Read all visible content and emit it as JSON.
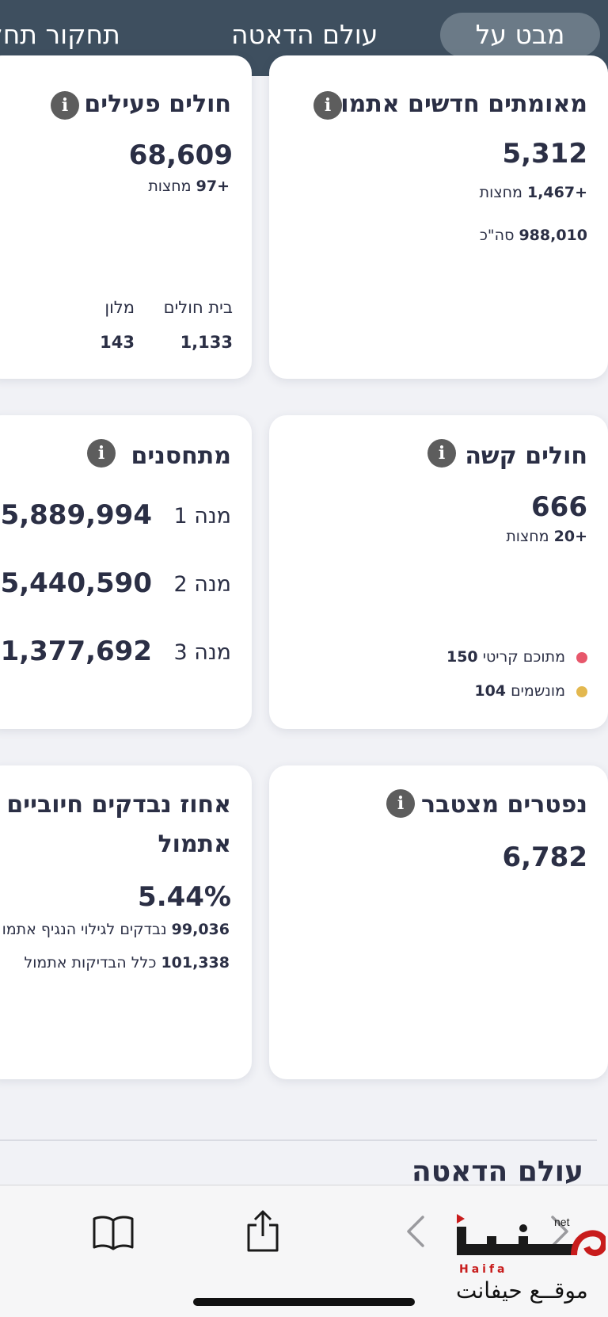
{
  "nav": {
    "tabs": [
      {
        "label": "מבט על",
        "active": true
      },
      {
        "label": "עולם הדאטה",
        "active": false
      },
      {
        "label": "תחקור תחלו",
        "active": false
      }
    ]
  },
  "cards": {
    "new_confirmed": {
      "title": "מאומתים חדשים אתמול",
      "value": "5,312",
      "since_midnight_value": "+1,467",
      "since_midnight_label": "מחצות",
      "total_value": "988,010",
      "total_label": "סה\"כ"
    },
    "active_patients": {
      "title": "חולים פעילים",
      "value": "68,609",
      "since_midnight_value": "+97",
      "since_midnight_label": "מחצות",
      "hospital_label": "בית חולים",
      "hospital_value": "1,133",
      "hotel_label": "מלון",
      "hotel_value": "143"
    },
    "severe": {
      "title": "חולים קשה",
      "value": "666",
      "since_midnight_value": "+20",
      "since_midnight_label": "מחצות",
      "critical_label": "מתוכם קריטי",
      "critical_value": "150",
      "ventilated_label": "מונשמים",
      "ventilated_value": "104",
      "colors": {
        "critical": "#e7576b",
        "ventilated": "#e3b84f"
      }
    },
    "vaccinated": {
      "title": "מתחסנים",
      "doses": [
        {
          "label": "מנה 1",
          "value": "5,889,994"
        },
        {
          "label": "מנה 2",
          "value": "5,440,590"
        },
        {
          "label": "מנה 3",
          "value": "1,377,692"
        }
      ]
    },
    "deceased": {
      "title": "נפטרים מצטבר",
      "value": "6,782"
    },
    "positive_rate": {
      "title_line1": "אחוז נבדקים חיוביים",
      "title_line2": "אתמול",
      "value": "5.44%",
      "tested_value": "99,036",
      "tested_label": "נבדקים לגילוי הנגיף אתמו",
      "all_tests_value": "101,338",
      "all_tests_label": "כלל הבדיקות אתמול"
    }
  },
  "section_title": "עולם הדאטה",
  "browser": {
    "icons": [
      "book-icon",
      "share-icon",
      "back-icon",
      "forward-icon"
    ]
  },
  "watermark": {
    "net": "net",
    "haifa": "Haifa",
    "arabic": "موقــع حيفانت"
  }
}
